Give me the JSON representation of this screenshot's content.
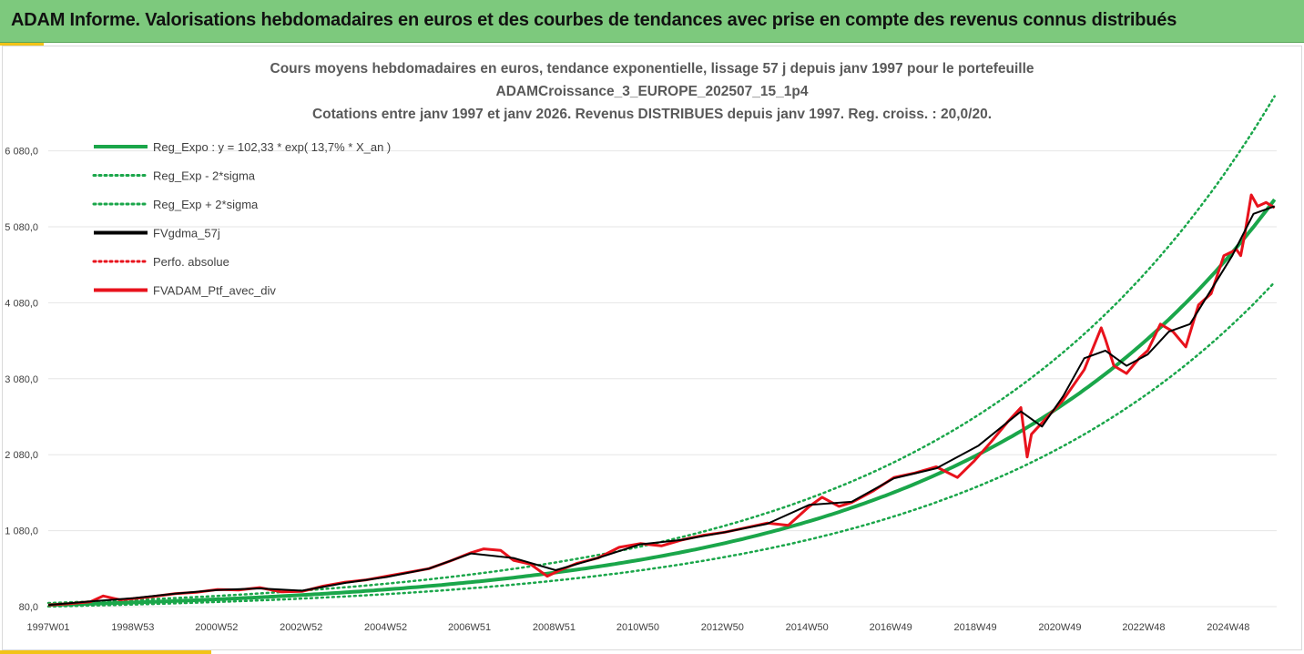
{
  "banner": {
    "title": "ADAM Informe. Valorisations hebdomadaires en euros et des courbes de tendances avec prise en compte des revenus connus distribués"
  },
  "colors": {
    "banner_bg": "#7dc97d",
    "accent": "#f2c318",
    "trend": "#1aa64a",
    "smooth": "#000000",
    "portfolio": "#e8121c"
  },
  "chart_data": {
    "type": "line",
    "title_lines": [
      "Cours moyens hebdomadaires  en euros, tendance exponentielle, lissage 57 j depuis janv 1997 pour le portefeuille",
      "ADAMCroissance_3_EUROPE_202507_15_1p4",
      "Cotations entre janv 1997 et janv 2026. Revenus DISTRIBUES depuis janv 1997. Reg. croiss. : 20,0/20."
    ],
    "x_tick_labels": [
      "1997W01",
      "1998W53",
      "2000W52",
      "2002W52",
      "2004W52",
      "2006W51",
      "2008W51",
      "2010W50",
      "2012W50",
      "2014W50",
      "2016W49",
      "2018W49",
      "2020W49",
      "2022W48",
      "2024W48"
    ],
    "x_range_years": [
      1997.0,
      2026.05
    ],
    "y_tick_labels": [
      "80,0",
      "1 080,0",
      "2 080,0",
      "3 080,0",
      "4 080,0",
      "5 080,0",
      "6 080,0"
    ],
    "y_ticks": [
      80,
      1080,
      2080,
      3080,
      4080,
      5080,
      6080
    ],
    "ylim": [
      80,
      6900
    ],
    "trend_equation": {
      "a": 102.33,
      "rate": 0.137
    },
    "legend_position": "top-left",
    "legend": [
      {
        "label": "Reg_Expo : y = 102,33 * exp( 13,7% *  X_an )",
        "style": "solid",
        "color": "#1aa64a"
      },
      {
        "label": "Reg_Exp - 2*sigma",
        "style": "dotted",
        "color": "#1aa64a"
      },
      {
        "label": "Reg_Exp + 2*sigma",
        "style": "dotted",
        "color": "#1aa64a"
      },
      {
        "label": "FVgdma_57j",
        "style": "solid",
        "color": "#000000"
      },
      {
        "label": "Perfo. absolue",
        "style": "dotted",
        "color": "#e8121c"
      },
      {
        "label": "FVADAM_Ptf_avec_div",
        "style": "solid",
        "color": "#e8121c"
      }
    ],
    "series_portfolio": {
      "name": "FVADAM_Ptf_avec_div",
      "x": [
        1997.0,
        1997.5,
        1998.0,
        1998.3,
        1998.7,
        1999.0,
        1999.5,
        2000.0,
        2000.5,
        2001.0,
        2001.5,
        2002.0,
        2002.5,
        2003.0,
        2003.5,
        2004.0,
        2004.5,
        2005.0,
        2005.5,
        2006.0,
        2006.5,
        2007.0,
        2007.3,
        2007.7,
        2008.0,
        2008.4,
        2008.8,
        2009.1,
        2009.5,
        2010.0,
        2010.5,
        2011.0,
        2011.5,
        2012.0,
        2012.5,
        2013.0,
        2013.5,
        2014.0,
        2014.5,
        2015.0,
        2015.3,
        2015.7,
        2016.0,
        2016.5,
        2017.0,
        2017.5,
        2018.0,
        2018.5,
        2018.9,
        2019.3,
        2019.7,
        2020.0,
        2020.15,
        2020.25,
        2020.5,
        2021.0,
        2021.5,
        2021.9,
        2022.0,
        2022.2,
        2022.5,
        2022.8,
        2023.0,
        2023.3,
        2023.6,
        2023.9,
        2024.2,
        2024.5,
        2024.8,
        2025.1,
        2025.2,
        2025.3,
        2025.45,
        2025.6,
        2025.8,
        2026.0
      ],
      "y": [
        100,
        120,
        145,
        220,
        170,
        185,
        215,
        250,
        270,
        305,
        300,
        330,
        275,
        280,
        350,
        400,
        430,
        480,
        530,
        580,
        680,
        790,
        840,
        820,
        690,
        640,
        480,
        560,
        650,
        720,
        860,
        910,
        880,
        960,
        1020,
        1060,
        1120,
        1180,
        1150,
        1400,
        1520,
        1400,
        1450,
        1600,
        1780,
        1840,
        1920,
        1780,
        2000,
        2250,
        2520,
        2700,
        2050,
        2350,
        2500,
        2800,
        3200,
        3750,
        3600,
        3250,
        3150,
        3350,
        3450,
        3800,
        3700,
        3500,
        4050,
        4200,
        4700,
        4780,
        4700,
        5000,
        5500,
        5350,
        5400,
        5330
      ]
    },
    "series_smooth": {
      "name": "FVgdma_57j",
      "x": [
        1997.0,
        1998.0,
        1999.0,
        2000.0,
        2001.0,
        2002.0,
        2003.0,
        2004.0,
        2005.0,
        2006.0,
        2007.0,
        2008.0,
        2009.0,
        2010.0,
        2011.0,
        2012.0,
        2013.0,
        2014.0,
        2015.0,
        2016.0,
        2017.0,
        2018.0,
        2019.0,
        2020.0,
        2020.5,
        2021.0,
        2021.5,
        2022.0,
        2022.5,
        2023.0,
        2023.5,
        2024.0,
        2024.5,
        2025.0,
        2025.5,
        2026.0
      ],
      "y": [
        100,
        150,
        190,
        250,
        300,
        320,
        290,
        390,
        470,
        580,
        780,
        720,
        560,
        720,
        900,
        960,
        1060,
        1170,
        1420,
        1460,
        1770,
        1900,
        2200,
        2650,
        2450,
        2850,
        3350,
        3450,
        3250,
        3400,
        3700,
        3800,
        4250,
        4700,
        5250,
        5350
      ]
    }
  }
}
